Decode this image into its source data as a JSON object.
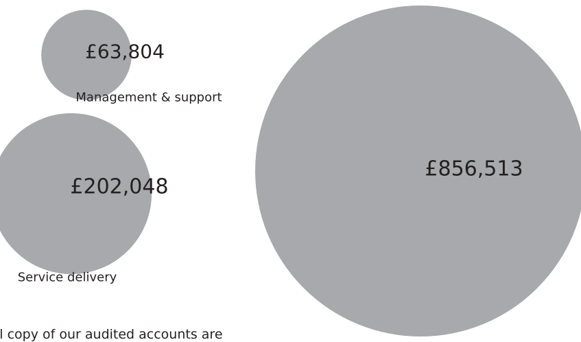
{
  "chart_data": {
    "type": "bubble",
    "title": "",
    "bubbles": [
      {
        "label": "Management & support",
        "value": 63804,
        "value_label": "£63,804"
      },
      {
        "label": "Service delivery",
        "value": 202048,
        "value_label": "£202,048"
      },
      {
        "label": "",
        "value": 856513,
        "value_label": "£856,513"
      }
    ],
    "colors": {
      "bubble": "#a7a9ac",
      "text": "#231f20"
    }
  },
  "footer": {
    "text": "ll copy of our audited accounts are"
  }
}
